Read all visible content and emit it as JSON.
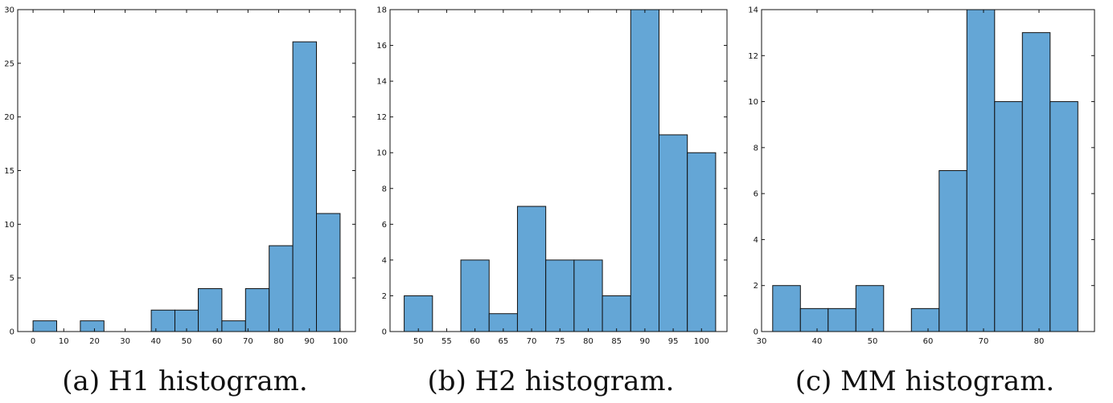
{
  "chart_data": [
    {
      "type": "bar",
      "caption": "(a) H1 histogram.",
      "bin_edges": [
        0,
        7.7,
        15.4,
        23.1,
        30.8,
        38.5,
        46.2,
        53.8,
        61.5,
        69.2,
        76.9,
        84.6,
        92.3,
        100
      ],
      "values": [
        1,
        0,
        1,
        0,
        0,
        2,
        2,
        4,
        1,
        4,
        8,
        27,
        11
      ],
      "xlim": [
        -5,
        105
      ],
      "ylim": [
        0,
        30
      ],
      "xticks": [
        0,
        10,
        20,
        30,
        40,
        50,
        60,
        70,
        80,
        90,
        100
      ],
      "yticks": [
        0,
        5,
        10,
        15,
        20,
        25,
        30
      ],
      "xticklabels": [
        "0",
        "10",
        "20",
        "30",
        "40",
        "50",
        "60",
        "70",
        "80",
        "90",
        "100"
      ],
      "yticklabels": [
        "0",
        "5",
        "10",
        "15",
        "20",
        "25",
        "30"
      ]
    },
    {
      "type": "bar",
      "caption": "(b) H2 histogram.",
      "bin_edges": [
        47.5,
        52.5,
        57.5,
        62.5,
        67.5,
        72.5,
        77.5,
        82.5,
        87.5,
        92.5,
        97.5,
        102.5
      ],
      "values": [
        2,
        0,
        4,
        1,
        7,
        4,
        4,
        2,
        18,
        11,
        10
      ],
      "xlim": [
        45,
        104.5
      ],
      "ylim": [
        0,
        18
      ],
      "xticks": [
        50,
        55,
        60,
        65,
        70,
        75,
        80,
        85,
        90,
        95,
        100
      ],
      "yticks": [
        0,
        2,
        4,
        6,
        8,
        10,
        12,
        14,
        16,
        18
      ],
      "xticklabels": [
        "50",
        "55",
        "60",
        "65",
        "70",
        "75",
        "80",
        "85",
        "90",
        "95",
        "100"
      ],
      "yticklabels": [
        "0",
        "2",
        "4",
        "6",
        "8",
        "10",
        "12",
        "14",
        "16",
        "18"
      ]
    },
    {
      "type": "bar",
      "caption": "(c) MM histogram.",
      "bin_edges": [
        32,
        37,
        42,
        47,
        52,
        57,
        62,
        67,
        72,
        77,
        82,
        87
      ],
      "values": [
        2,
        1,
        1,
        2,
        0,
        1,
        7,
        14,
        10,
        13,
        10
      ],
      "xlim": [
        30,
        90
      ],
      "ylim": [
        0,
        14
      ],
      "xticks": [
        30,
        40,
        50,
        60,
        70,
        80
      ],
      "yticks": [
        0,
        2,
        4,
        6,
        8,
        10,
        12,
        14
      ],
      "xticklabels": [
        "30",
        "40",
        "50",
        "60",
        "70",
        "80"
      ],
      "yticklabels": [
        "0",
        "2",
        "4",
        "6",
        "8",
        "10",
        "12",
        "14"
      ]
    }
  ],
  "colors": {
    "bar_fill": "#64a6d6",
    "bar_edge": "#111111"
  }
}
